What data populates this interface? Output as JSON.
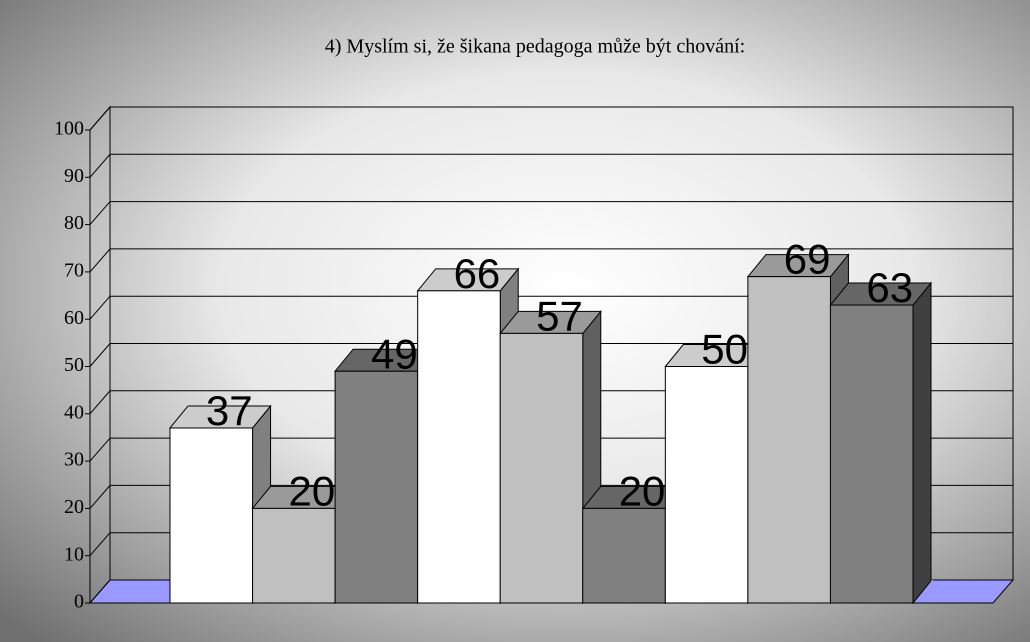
{
  "chart_data": {
    "type": "bar3d",
    "title": "4) Myslím si, že šikana pedagoga může být chování:",
    "categories": [
      null,
      null,
      null
    ],
    "series": [
      {
        "color": "#ffffff",
        "values": [
          37,
          66,
          50
        ]
      },
      {
        "color": "#c0c0c0",
        "values": [
          20,
          57,
          69
        ]
      },
      {
        "color": "#808080",
        "values": [
          49,
          20,
          63
        ]
      }
    ],
    "floor_color": "#9999ff",
    "ylim": [
      0,
      100
    ],
    "yticks": [
      0,
      10,
      20,
      30,
      40,
      50,
      60,
      70,
      80,
      90,
      100
    ],
    "grid": true
  }
}
